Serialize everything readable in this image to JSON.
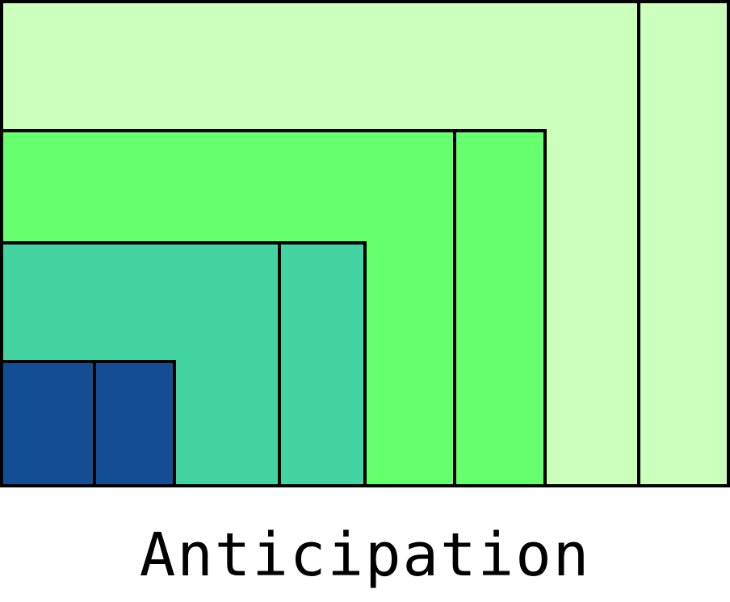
{
  "caption": "Anticipation",
  "colors": {
    "outer": "#ccffbb",
    "second": "#66ff6e",
    "third": "#44d4a2",
    "inner": "#134e94",
    "stroke": "#000000",
    "background": "#ffffff"
  }
}
